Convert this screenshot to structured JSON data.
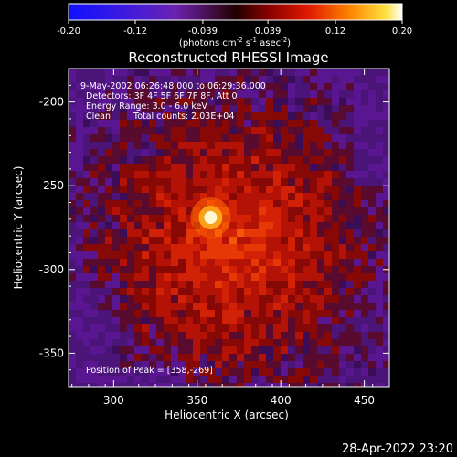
{
  "colorbar": {
    "ticks": [
      "-0.20",
      "-0.12",
      "-0.039",
      "0.039",
      "0.12",
      "0.20"
    ],
    "range": [
      -0.2,
      0.2
    ],
    "units_label": "(photons cm",
    "units_sup1": "-2",
    "units_mid": " s",
    "units_sup2": "-1",
    "units_mid2": " asec",
    "units_sup3": "-2",
    "units_end": ")"
  },
  "chart_data": {
    "type": "heatmap",
    "title": "Reconstructed RHESSI Image",
    "xlabel": "Heliocentric X (arcsec)",
    "ylabel": "Heliocentric Y (arcsec)",
    "xlim": [
      273,
      465
    ],
    "ylim": [
      -370,
      -180
    ],
    "xticks": [
      "300",
      "350",
      "400",
      "450"
    ],
    "yticks": [
      "-200",
      "-250",
      "-300",
      "-350"
    ],
    "peak": [
      358,
      -269
    ],
    "annotations": {
      "time": "9-May-2002 06:26:48.000 to 06:29:36.000",
      "detectors": "Detectors: 3F 4F 5F 6F 7F 8F, Att 0",
      "energy": "Energy Range: 3.0 - 6.0 keV",
      "clean": "Clean",
      "counts": "Total counts: 2.03E+04",
      "peak_label": "Position of Peak = [358,-269]"
    }
  },
  "footer": {
    "timestamp": "28-Apr-2022 23:20"
  }
}
